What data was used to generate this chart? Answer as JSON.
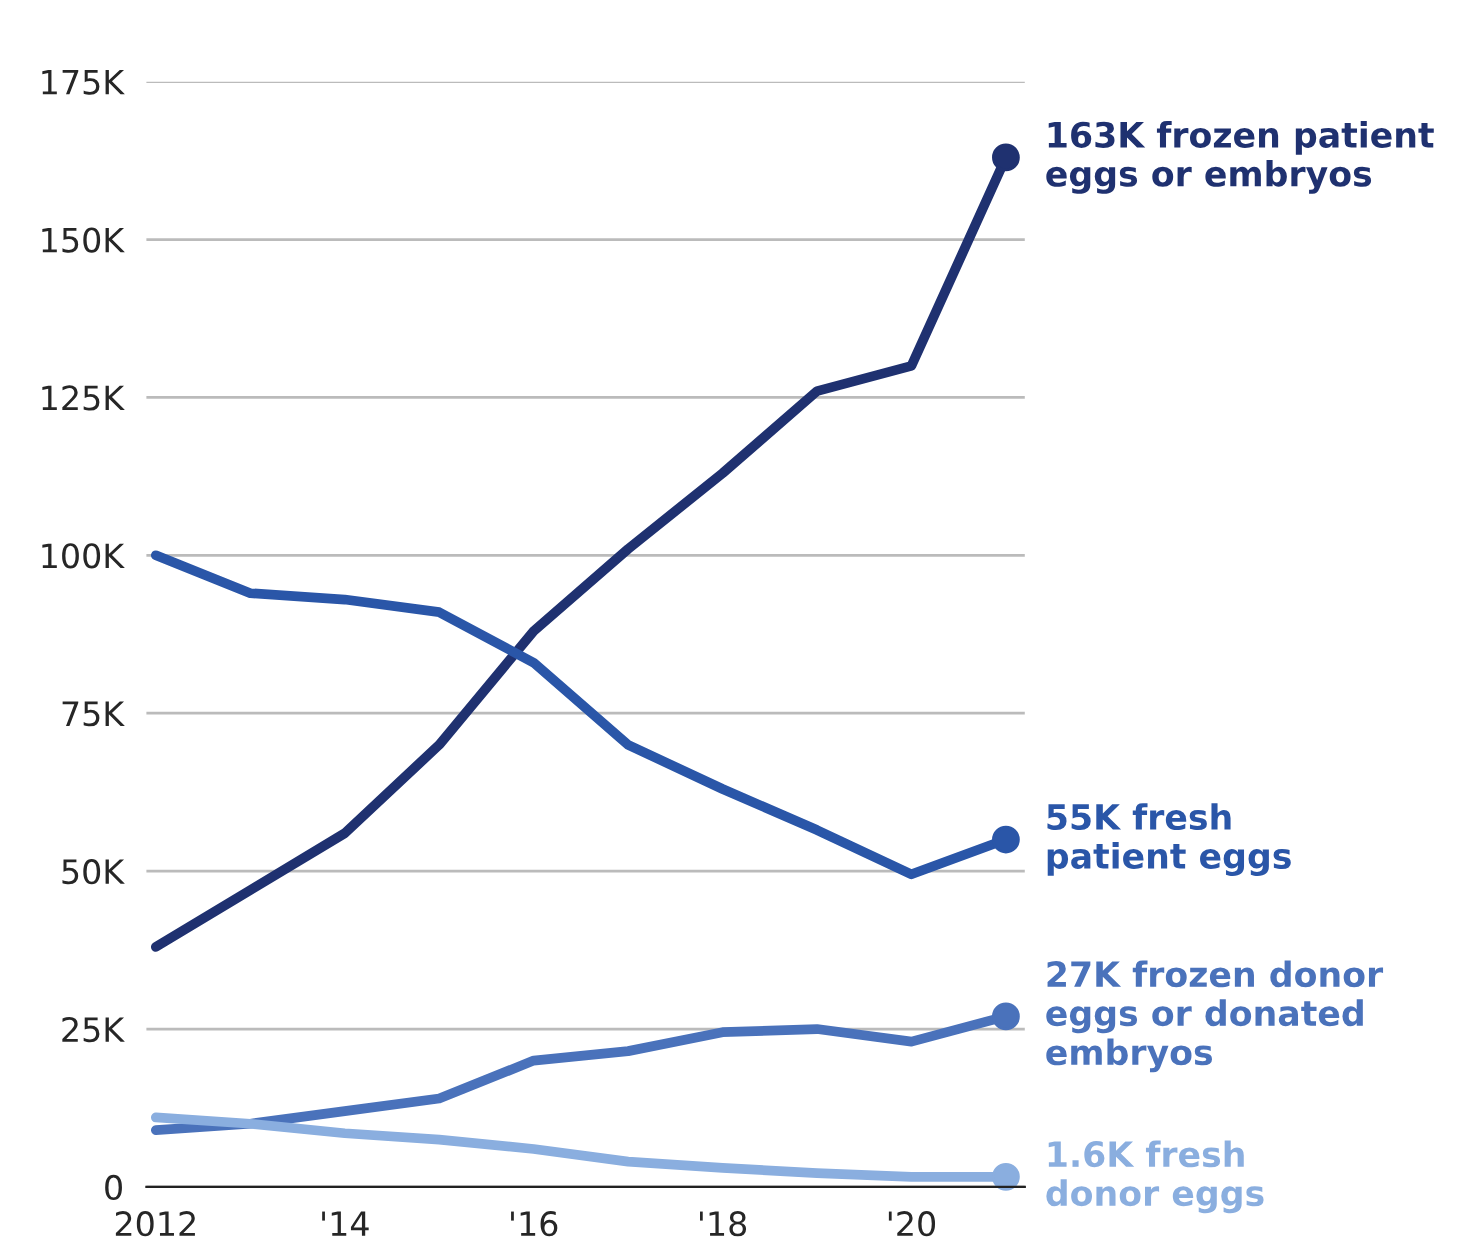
{
  "chart_data": {
    "type": "line",
    "x": [
      2012,
      2013,
      2014,
      2015,
      2016,
      2017,
      2018,
      2019,
      2020,
      2021
    ],
    "series": [
      {
        "color": "#1f3170",
        "values": [
          38000,
          47000,
          56000,
          70000,
          88000,
          101000,
          113000,
          126000,
          130000,
          163000
        ]
      },
      {
        "color": "#2a56a8",
        "values": [
          100000,
          94000,
          93000,
          91000,
          83000,
          70000,
          63000,
          56500,
          49500,
          55000
        ]
      },
      {
        "color": "#4a72bb",
        "values": [
          9000,
          10000,
          12000,
          14000,
          20000,
          21500,
          24500,
          25000,
          23000,
          27000
        ]
      },
      {
        "color": "#8aaedf",
        "values": [
          11000,
          10000,
          8500,
          7500,
          6000,
          4000,
          3000,
          2200,
          1600,
          1600
        ]
      }
    ],
    "annotations": [
      "163K frozen patient\neggs or embryos",
      "55K fresh\npatient eggs",
      "27K frozen donor\neggs or donated\nembryos",
      "1.6K fresh\ndonor eggs"
    ],
    "xlim": [
      2011.9,
      2021.2
    ],
    "xticks": [
      2012,
      {
        "value": 2014,
        "label": "'14"
      },
      {
        "value": 2016,
        "label": "'16"
      },
      {
        "value": 2018,
        "label": "'18"
      },
      {
        "value": 2020,
        "label": "'20"
      }
    ],
    "ylim": [
      0,
      175000
    ],
    "yticks": [
      {
        "value": 0,
        "label": "0"
      },
      {
        "value": 25000,
        "label": "25K"
      },
      {
        "value": 50000,
        "label": "50K"
      },
      {
        "value": 75000,
        "label": "75K"
      },
      {
        "value": 100000,
        "label": "100K"
      },
      {
        "value": 125000,
        "label": "125K"
      },
      {
        "value": 150000,
        "label": "150K"
      },
      {
        "value": 175000,
        "label": "175K"
      }
    ],
    "grid": "y",
    "line_style": "solid",
    "legend": false
  }
}
